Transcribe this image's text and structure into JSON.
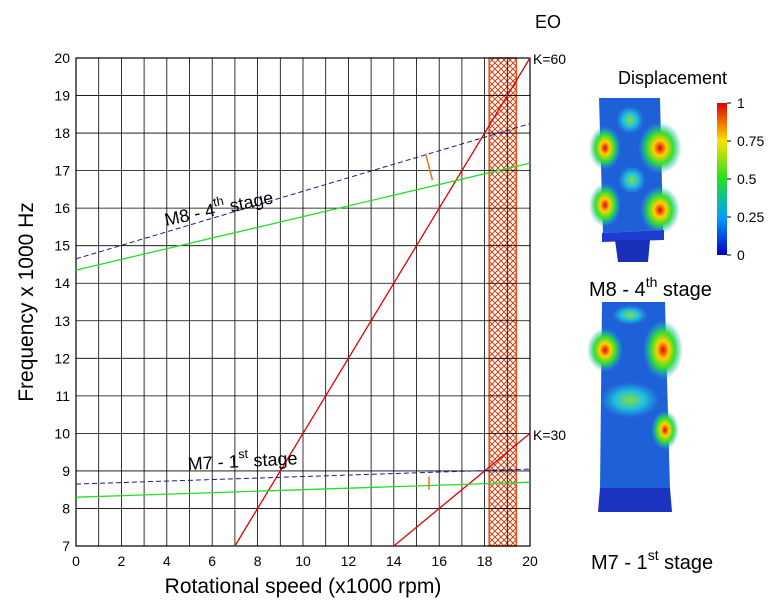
{
  "chart_data": {
    "type": "line",
    "x_label": "Rotational speed (x1000 rpm)",
    "y_label": "Frequency x 1000 Hz",
    "xlim": [
      0,
      20
    ],
    "ylim": [
      7,
      20
    ],
    "xticks": [
      0,
      2,
      4,
      6,
      8,
      10,
      12,
      14,
      16,
      18,
      20
    ],
    "yticks": [
      7,
      8,
      9,
      10,
      11,
      12,
      13,
      14,
      15,
      16,
      17,
      18,
      19,
      20
    ],
    "xminor": [
      1,
      3,
      5,
      7,
      9,
      11,
      13,
      15,
      17,
      19
    ],
    "grid": true,
    "series": [
      {
        "color": "#e00000",
        "style": "solid",
        "x": [
          7,
          20
        ],
        "values": [
          7,
          20
        ]
      },
      {
        "color": "#e00000",
        "style": "solid",
        "x": [
          14,
          20
        ],
        "values": [
          7,
          10
        ]
      },
      {
        "color": "#1a1a8c",
        "style": "dashed",
        "x": [
          0,
          20
        ],
        "values": [
          14.65,
          18.25
        ]
      },
      {
        "color": "#22e022",
        "style": "solid",
        "x": [
          0,
          20
        ],
        "values": [
          14.35,
          17.2
        ]
      },
      {
        "color": "#1a1a8c",
        "style": "dashed",
        "x": [
          0,
          20
        ],
        "values": [
          8.65,
          9.05
        ]
      },
      {
        "color": "#22e022",
        "style": "solid",
        "x": [
          0,
          20
        ],
        "values": [
          8.3,
          8.7
        ]
      }
    ],
    "shaded_region": {
      "xrange": [
        18.2,
        19.4
      ],
      "color": "#e05020"
    },
    "annotations": [
      {
        "text": "EO"
      },
      {
        "text": "K=60"
      },
      {
        "text": "K=30"
      },
      {
        "text": "M8 - 4",
        "sup": "th",
        "after": " stage"
      },
      {
        "text": "M7 - 1",
        "sup": "st",
        "after": " stage"
      }
    ],
    "colorbar": {
      "title": "Displacement",
      "lim": [
        0,
        1
      ],
      "ticks": [
        0,
        0.25,
        0.5,
        0.75,
        1
      ]
    },
    "blade_labels": [
      {
        "text": "M8 - 4",
        "sup": "th",
        "after": " stage"
      },
      {
        "text": "M7 - 1",
        "sup": "st",
        "after": " stage"
      }
    ]
  }
}
